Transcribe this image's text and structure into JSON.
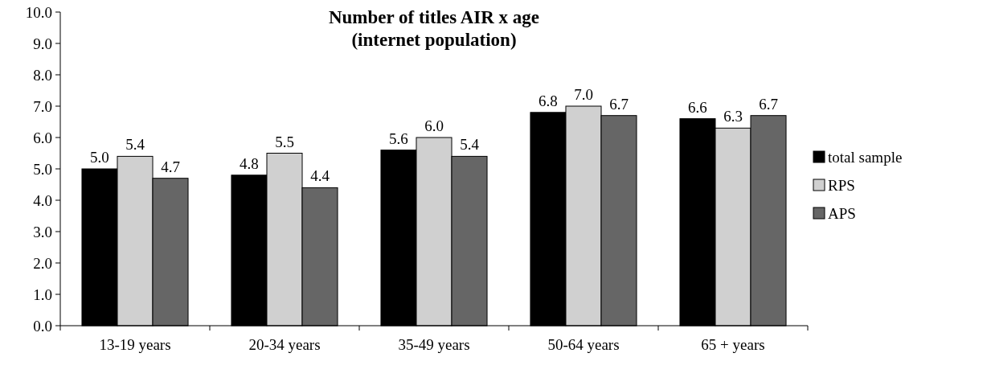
{
  "chart_data": {
    "type": "bar",
    "title": "Number of titles AIR x age\n(internet population)",
    "categories": [
      "13-19 years",
      "20-34 years",
      "35-49 years",
      "50-64 years",
      "65 + years"
    ],
    "series": [
      {
        "name": "total sample",
        "color": "#000000",
        "values": [
          5.0,
          4.8,
          5.6,
          6.8,
          6.6
        ],
        "value_labels": [
          "5.0",
          "4.8",
          "5.6",
          "6.8",
          "6.6"
        ]
      },
      {
        "name": "RPS",
        "color": "#d0d0d0",
        "values": [
          5.4,
          5.5,
          6.0,
          7.0,
          6.3
        ],
        "value_labels": [
          "5.4",
          "5.5",
          "6.0",
          "7.0",
          "6.3"
        ]
      },
      {
        "name": "APS",
        "color": "#666666",
        "values": [
          4.7,
          4.4,
          5.4,
          6.7,
          6.7
        ],
        "value_labels": [
          "4.7",
          "4.4",
          "5.4",
          "6.7",
          "6.7"
        ]
      }
    ],
    "ylim": [
      0,
      10
    ],
    "yticks": [
      {
        "value": 0,
        "label": "0.0"
      },
      {
        "value": 1,
        "label": "1.0"
      },
      {
        "value": 2,
        "label": "2.0"
      },
      {
        "value": 3,
        "label": "3.0"
      },
      {
        "value": 4,
        "label": "4.0"
      },
      {
        "value": 5,
        "label": "5.0"
      },
      {
        "value": 6,
        "label": "6.0"
      },
      {
        "value": 7,
        "label": "7.0"
      },
      {
        "value": 8,
        "label": "8.0"
      },
      {
        "value": 9,
        "label": "9.0"
      },
      {
        "value": 10,
        "label": "10.0"
      }
    ],
    "grid": false,
    "legend": "right"
  }
}
